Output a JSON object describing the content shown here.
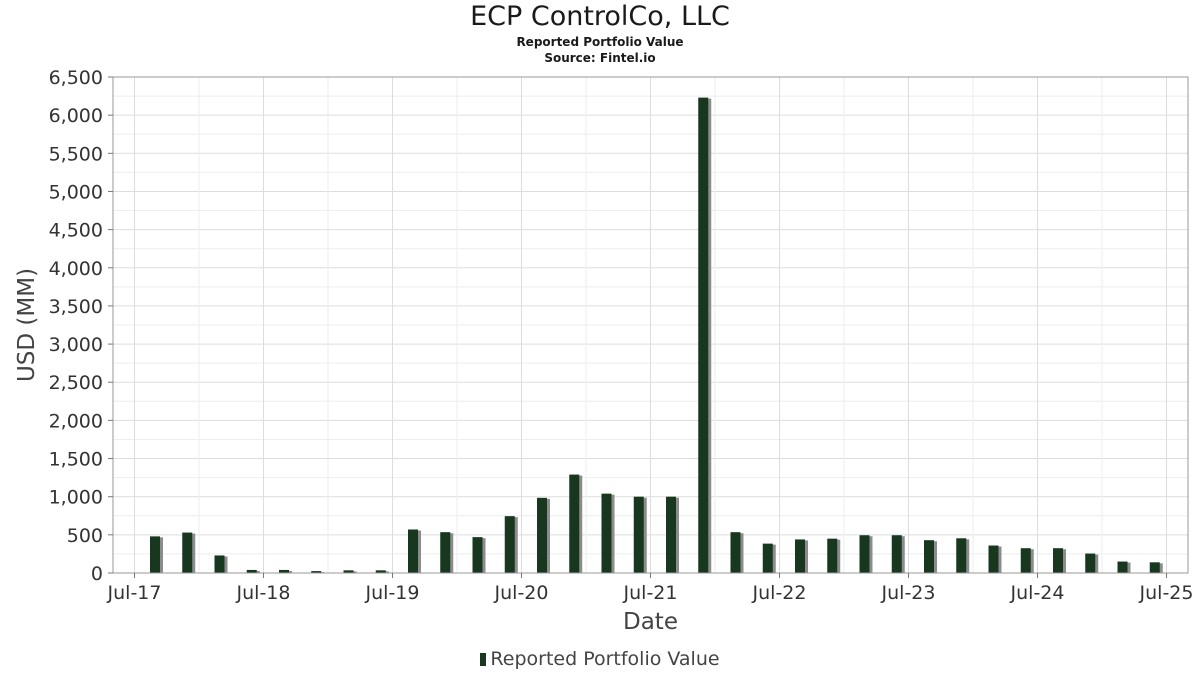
{
  "chart_data": {
    "type": "bar",
    "title": "ECP ControlCo, LLC",
    "subtitle": [
      "Reported Portfolio Value",
      "Source: Fintel.io"
    ],
    "xlabel": "Date",
    "ylabel": "USD (MM)",
    "ylim": [
      0,
      6500
    ],
    "yticks": [
      0,
      500,
      1000,
      1500,
      2000,
      2500,
      3000,
      3500,
      4000,
      4500,
      5000,
      5500,
      6000,
      6500
    ],
    "ytick_labels": [
      "0",
      "500",
      "1,000",
      "1,500",
      "2,000",
      "2,500",
      "3,000",
      "3,500",
      "4,000",
      "4,500",
      "5,000",
      "5,500",
      "6,000",
      "6,500"
    ],
    "xlim": [
      "2017-05",
      "2025-09"
    ],
    "xtick_labels": [
      {
        "date": "2017-07",
        "label": "Jul-17"
      },
      {
        "date": "2018-07",
        "label": "Jul-18"
      },
      {
        "date": "2019-07",
        "label": "Jul-19"
      },
      {
        "date": "2020-07",
        "label": "Jul-20"
      },
      {
        "date": "2021-07",
        "label": "Jul-21"
      },
      {
        "date": "2022-07",
        "label": "Jul-22"
      },
      {
        "date": "2023-07",
        "label": "Jul-23"
      },
      {
        "date": "2024-07",
        "label": "Jul-24"
      },
      {
        "date": "2025-07",
        "label": "Jul-25"
      }
    ],
    "grid": true,
    "legend": "bottom-center",
    "series": [
      {
        "name": "Reported Portfolio Value",
        "color": "#17381f",
        "shadow_color": "#8c8c8c",
        "points": [
          {
            "x": "2017-09",
            "y": 480
          },
          {
            "x": "2017-12",
            "y": 530
          },
          {
            "x": "2018-03",
            "y": 230
          },
          {
            "x": "2018-06",
            "y": 40
          },
          {
            "x": "2018-09",
            "y": 40
          },
          {
            "x": "2018-12",
            "y": 25
          },
          {
            "x": "2019-03",
            "y": 35
          },
          {
            "x": "2019-06",
            "y": 35
          },
          {
            "x": "2019-09",
            "y": 570
          },
          {
            "x": "2019-12",
            "y": 535
          },
          {
            "x": "2020-03",
            "y": 470
          },
          {
            "x": "2020-06",
            "y": 745
          },
          {
            "x": "2020-09",
            "y": 985
          },
          {
            "x": "2020-12",
            "y": 1290
          },
          {
            "x": "2021-03",
            "y": 1040
          },
          {
            "x": "2021-06",
            "y": 1000
          },
          {
            "x": "2021-09",
            "y": 1000
          },
          {
            "x": "2021-12",
            "y": 6230
          },
          {
            "x": "2022-03",
            "y": 535
          },
          {
            "x": "2022-06",
            "y": 385
          },
          {
            "x": "2022-09",
            "y": 440
          },
          {
            "x": "2022-12",
            "y": 450
          },
          {
            "x": "2023-03",
            "y": 495
          },
          {
            "x": "2023-06",
            "y": 495
          },
          {
            "x": "2023-09",
            "y": 430
          },
          {
            "x": "2023-12",
            "y": 455
          },
          {
            "x": "2024-03",
            "y": 360
          },
          {
            "x": "2024-06",
            "y": 325
          },
          {
            "x": "2024-09",
            "y": 325
          },
          {
            "x": "2024-12",
            "y": 255
          },
          {
            "x": "2025-03",
            "y": 150
          },
          {
            "x": "2025-06",
            "y": 140
          }
        ]
      }
    ]
  }
}
